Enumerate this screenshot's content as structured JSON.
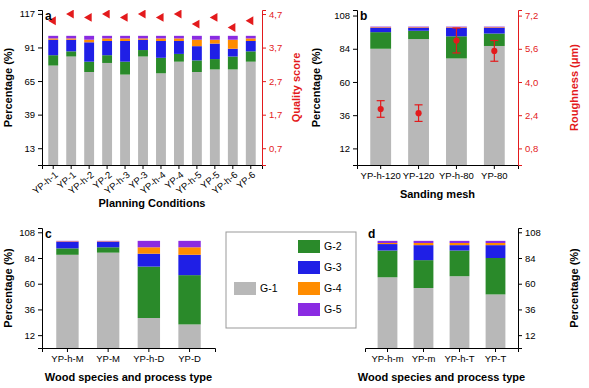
{
  "chart_data": [
    {
      "type": "bar",
      "title": "a",
      "stacked": true,
      "x_label": "Planning Conditions",
      "y_label": "Percentage (%)",
      "y2_label": "Quality score",
      "categories": [
        "YP-h-1",
        "YP-1",
        "YP-h-2",
        "YP-2",
        "YP-h-3",
        "YP-3",
        "YP-h-4",
        "YP-4",
        "YP-h-5",
        "YP-5",
        "YP-h-6",
        "YP-6"
      ],
      "ylim": [
        0,
        120
      ],
      "yticks": [
        13,
        39,
        65,
        91,
        117
      ],
      "y2lim": [
        0.2,
        4.82
      ],
      "y2ticks": [
        {
          "value": 0.7,
          "label": "0,7"
        },
        {
          "value": 1.7,
          "label": "1,7"
        },
        {
          "value": 2.7,
          "label": "2,7"
        },
        {
          "value": 3.7,
          "label": "3,7"
        },
        {
          "value": 4.7,
          "label": "4,7"
        }
      ],
      "series": [
        {
          "name": "G-1",
          "color": "#b8b8b8",
          "values": [
            77,
            84,
            72,
            79,
            70,
            84,
            71,
            80,
            72,
            74,
            74,
            80
          ]
        },
        {
          "name": "G-2",
          "color": "#2a8a2a",
          "values": [
            8,
            4,
            8,
            6,
            10,
            5,
            12,
            6,
            9,
            8,
            10,
            8
          ]
        },
        {
          "name": "G-3",
          "color": "#1f1fe6",
          "values": [
            12,
            9,
            15,
            11,
            16,
            8,
            13,
            10,
            11,
            12,
            6,
            8
          ]
        },
        {
          "name": "G-4",
          "color": "#ff8c00",
          "values": [
            1,
            1,
            2,
            2,
            2,
            1,
            2,
            2,
            5,
            3,
            7,
            2
          ]
        },
        {
          "name": "G-5",
          "color": "#8a2be2",
          "values": [
            2,
            2,
            3,
            2,
            2,
            2,
            2,
            2,
            3,
            3,
            3,
            2
          ]
        },
        {
          "type": "scatter",
          "axis": "y2",
          "color": "#e31a1c",
          "marker": "triangle-left",
          "values": [
            4.5,
            4.7,
            4.6,
            4.7,
            4.6,
            4.7,
            4.6,
            4.7,
            4.4,
            4.6,
            4.3,
            4.5
          ]
        }
      ]
    },
    {
      "type": "bar",
      "title": "b",
      "stacked": true,
      "x_label": "Sanding mesh",
      "y_label": "Percentage (%)",
      "y2_label": "Roughness (μm)",
      "categories": [
        "YP-h-120",
        "YP-120",
        "YP-h-80",
        "YP-80"
      ],
      "ylim": [
        0,
        112
      ],
      "yticks": [
        12,
        36,
        60,
        84,
        108
      ],
      "y2lim": [
        0,
        7.47
      ],
      "y2ticks": [
        {
          "value": 0.8,
          "label": "0,8"
        },
        {
          "value": 2.4,
          "label": "2,4"
        },
        {
          "value": 4.0,
          "label": "4,0"
        },
        {
          "value": 5.6,
          "label": "5,6"
        },
        {
          "value": 7.2,
          "label": "7,2"
        }
      ],
      "series": [
        {
          "name": "G-1",
          "color": "#b8b8b8",
          "values": [
            84,
            91,
            77,
            86
          ]
        },
        {
          "name": "G-2",
          "color": "#2a8a2a",
          "values": [
            12,
            6,
            16,
            9
          ]
        },
        {
          "name": "G-3",
          "color": "#1f1fe6",
          "values": [
            3,
            2,
            6,
            4
          ]
        },
        {
          "name": "G-4",
          "color": "#ff8c00",
          "values": [
            0.5,
            0.5,
            0.5,
            0.5
          ]
        },
        {
          "name": "G-5",
          "color": "#8a2be2",
          "values": [
            0.5,
            0.5,
            0.5,
            0.5
          ]
        },
        {
          "type": "scatter",
          "axis": "y2",
          "color": "#e31a1c",
          "marker": "circle",
          "values": [
            2.7,
            2.5,
            6.0,
            5.5
          ],
          "errors": [
            0.4,
            0.4,
            0.6,
            0.5
          ]
        }
      ]
    },
    {
      "type": "bar",
      "title": "c",
      "stacked": true,
      "x_label": "Wood species and process type",
      "y_label": "Percentage (%)",
      "categories": [
        "YP-h-M",
        "YP-M",
        "YP-h-D",
        "YP-D"
      ],
      "ylim": [
        0,
        112
      ],
      "yticks": [
        12,
        36,
        60,
        84,
        108
      ],
      "series": [
        {
          "name": "G-1",
          "color": "#b8b8b8",
          "values": [
            87,
            89,
            28,
            22
          ]
        },
        {
          "name": "G-2",
          "color": "#2a8a2a",
          "values": [
            6,
            5,
            48,
            46
          ]
        },
        {
          "name": "G-3",
          "color": "#1f1fe6",
          "values": [
            6,
            5,
            12,
            19
          ]
        },
        {
          "name": "G-4",
          "color": "#ff8c00",
          "values": [
            0.5,
            0.5,
            6,
            7
          ]
        },
        {
          "name": "G-5",
          "color": "#8a2be2",
          "values": [
            0.5,
            0.5,
            6,
            6
          ]
        }
      ]
    },
    {
      "type": "bar",
      "title": "d",
      "stacked": true,
      "x_label": "Wood species and process type",
      "y2_label": "Percentage (%)",
      "categories": [
        "YP-h-m",
        "YP-m",
        "YP-h-T",
        "YP-T"
      ],
      "y2lim": [
        0,
        112
      ],
      "y2ticks": [
        12,
        36,
        60,
        84,
        108
      ],
      "series": [
        {
          "name": "G-1",
          "color": "#b8b8b8",
          "axis": "y2",
          "values": [
            66,
            56,
            67,
            50
          ]
        },
        {
          "name": "G-2",
          "color": "#2a8a2a",
          "axis": "y2",
          "values": [
            25,
            26,
            24,
            34
          ]
        },
        {
          "name": "G-3",
          "color": "#1f1fe6",
          "axis": "y2",
          "values": [
            6,
            14,
            5,
            12
          ]
        },
        {
          "name": "G-4",
          "color": "#ff8c00",
          "axis": "y2",
          "values": [
            1,
            2,
            2,
            2
          ]
        },
        {
          "name": "G-5",
          "color": "#8a2be2",
          "axis": "y2",
          "values": [
            2,
            2,
            2,
            2
          ]
        }
      ]
    }
  ]
}
